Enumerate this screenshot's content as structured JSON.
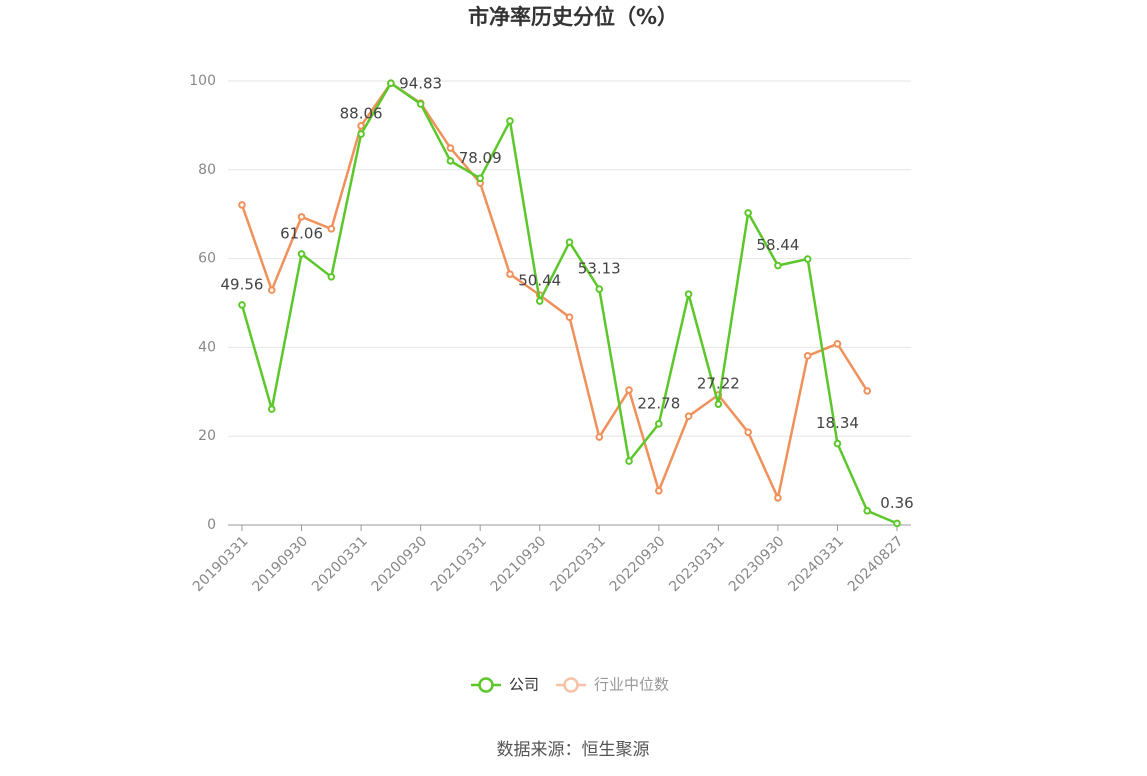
{
  "chart_data": {
    "type": "line",
    "title": "市净率历史分位（%）",
    "categories": [
      "20190331",
      null,
      "20190930",
      null,
      "20200331",
      null,
      "20200930",
      null,
      "20210331",
      null,
      "20210930",
      null,
      "20220331",
      null,
      "20220930",
      null,
      "20230331",
      null,
      "20230930",
      null,
      "20240331",
      null,
      "20240827"
    ],
    "series": [
      {
        "name": "公司",
        "color": "#5cc72a",
        "values": [
          49.56,
          26.1,
          61.06,
          55.9,
          88.06,
          99.5,
          94.83,
          82,
          78.09,
          91,
          50.44,
          63.7,
          53.13,
          14.4,
          22.78,
          52,
          27.22,
          70.3,
          58.44,
          59.9,
          18.34,
          3.2,
          0.36
        ],
        "value_labels": [
          "49.56",
          null,
          "61.06",
          null,
          "88.06",
          null,
          "94.83",
          null,
          "78.09",
          null,
          "50.44",
          null,
          "53.13",
          null,
          "22.78",
          null,
          "27.22",
          null,
          "58.44",
          null,
          "18.34",
          null,
          "0.36"
        ]
      },
      {
        "name": "行业中位数",
        "color": "#f0905a",
        "values": [
          72.1,
          52.9,
          69.4,
          66.7,
          89.9,
          99.5,
          95,
          84.9,
          77,
          56.5,
          51.8,
          46.8,
          19.8,
          30.4,
          7.7,
          24.5,
          29.3,
          20.9,
          6.1,
          38.1,
          40.8,
          30.2,
          null
        ]
      }
    ],
    "ylim": [
      0,
      100
    ],
    "yticks": [
      0,
      20,
      40,
      60,
      80,
      100
    ],
    "grid": true,
    "source": "数据来源：恒生聚源"
  }
}
